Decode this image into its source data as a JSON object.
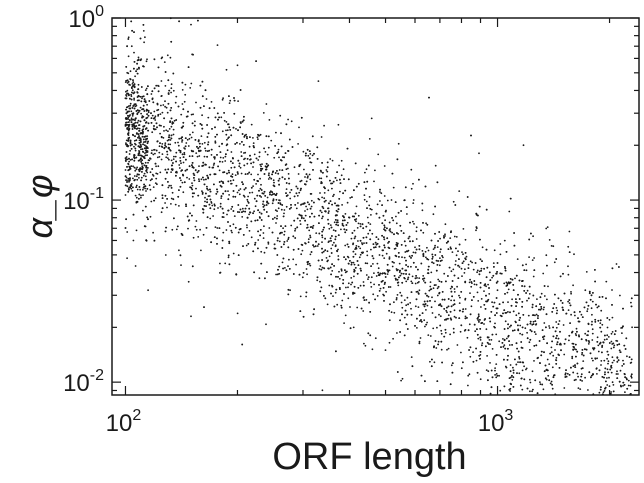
{
  "chart_data": {
    "type": "scatter",
    "xlabel": "ORF length",
    "ylabel": "α_φ",
    "x_scale": "log",
    "y_scale": "log",
    "xlim": [
      92,
      2400
    ],
    "ylim": [
      0.0085,
      1.0
    ],
    "grid": false,
    "x_ticks": [
      {
        "value": 100,
        "base": "10",
        "exp": "2"
      },
      {
        "value": 1000,
        "base": "10",
        "exp": "3"
      }
    ],
    "y_ticks": [
      {
        "value": 1,
        "base": "10",
        "exp": "0"
      },
      {
        "value": 0.1,
        "base": "10",
        "exp": "-1"
      },
      {
        "value": 0.01,
        "base": "10",
        "exp": "-2"
      }
    ],
    "series": [
      {
        "color": "#1a1a1a",
        "point_count_approx": 5000,
        "x_range": [
          100,
          2300
        ],
        "trend": {
          "slope_log10": -1.03,
          "y_at_x100": 0.25,
          "spread_log10": 0.22
        },
        "points": [
          [
            100,
            0.26
          ],
          [
            101,
            0.28
          ],
          [
            102,
            0.24
          ],
          [
            103,
            0.33
          ],
          [
            105,
            0.3
          ],
          [
            108,
            0.22
          ],
          [
            110,
            0.19
          ],
          [
            115,
            0.21
          ],
          [
            120,
            0.18
          ],
          [
            130,
            0.17
          ],
          [
            140,
            0.15
          ],
          [
            160,
            0.13
          ],
          [
            180,
            0.12
          ],
          [
            200,
            0.11
          ],
          [
            250,
            0.1
          ],
          [
            300,
            0.095
          ],
          [
            350,
            0.09
          ],
          [
            400,
            0.08
          ],
          [
            450,
            0.075
          ],
          [
            500,
            0.068
          ],
          [
            600,
            0.055
          ],
          [
            700,
            0.048
          ],
          [
            800,
            0.042
          ],
          [
            1000,
            0.032
          ],
          [
            1200,
            0.028
          ],
          [
            1500,
            0.025
          ],
          [
            2000,
            0.022
          ],
          [
            2300,
            0.02
          ],
          [
            104,
            0.7
          ],
          [
            112,
            0.85
          ],
          [
            125,
            0.6
          ],
          [
            150,
            0.92
          ],
          [
            200,
            0.55
          ],
          [
            330,
            0.45
          ],
          [
            105,
            0.06
          ],
          [
            115,
            0.032
          ],
          [
            150,
            0.023
          ],
          [
            180,
            0.04
          ],
          [
            500,
            0.015
          ],
          [
            1100,
            0.012
          ],
          [
            1300,
            0.01
          ],
          [
            2000,
            0.0095
          ]
        ]
      }
    ]
  }
}
